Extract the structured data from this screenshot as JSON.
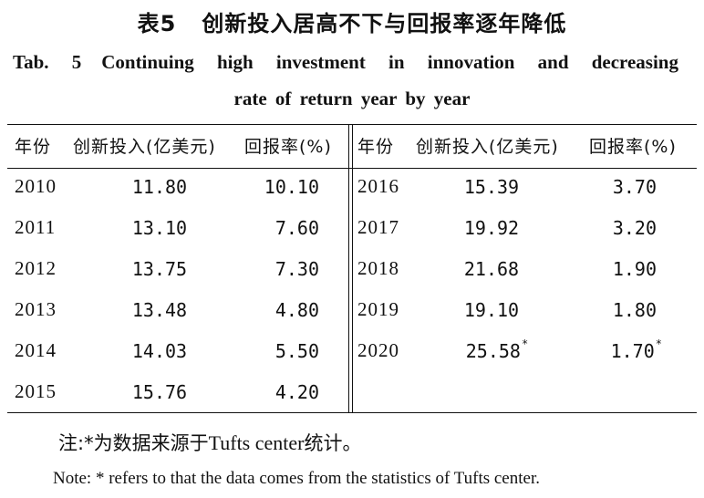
{
  "title": {
    "cn_number": "表5",
    "cn_text": "创新投入居高不下与回报率逐年降低",
    "en_number": "Tab. 5",
    "en_line1": "Continuing high investment in innovation and decreasing",
    "en_line2": "rate of return year by year"
  },
  "table": {
    "headers": {
      "year": "年份",
      "investment": "创新投入(亿美元)",
      "return_rate": "回报率(%)"
    },
    "left_rows": [
      {
        "year": "2010",
        "investment": "11.80",
        "return_rate": "10.10"
      },
      {
        "year": "2011",
        "investment": "13.10",
        "return_rate": "7.60"
      },
      {
        "year": "2012",
        "investment": "13.75",
        "return_rate": "7.30"
      },
      {
        "year": "2013",
        "investment": "13.48",
        "return_rate": "4.80"
      },
      {
        "year": "2014",
        "investment": "14.03",
        "return_rate": "5.50"
      },
      {
        "year": "2015",
        "investment": "15.76",
        "return_rate": "4.20"
      }
    ],
    "right_rows": [
      {
        "year": "2016",
        "investment": "15.39",
        "return_rate": "3.70"
      },
      {
        "year": "2017",
        "investment": "19.92",
        "return_rate": "3.20"
      },
      {
        "year": "2018",
        "investment": "21.68",
        "return_rate": "1.90"
      },
      {
        "year": "2019",
        "investment": "19.10",
        "return_rate": "1.80"
      },
      {
        "year": "2020",
        "investment": "25.58",
        "investment_mark": "*",
        "return_rate": "1.70",
        "return_rate_mark": "*"
      }
    ]
  },
  "note": {
    "cn_prefix": "注:*为数据来源于",
    "cn_source": "Tufts center",
    "cn_suffix": "统计。",
    "en": "Note: * refers to that the data comes from the statistics of Tufts center."
  }
}
